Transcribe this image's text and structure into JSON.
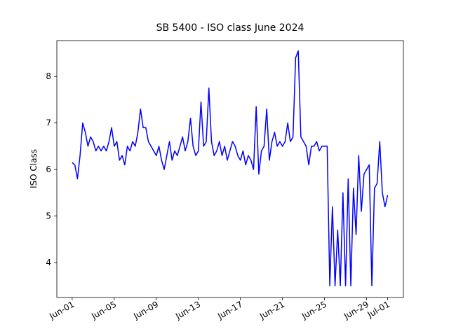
{
  "chart_data": {
    "type": "line",
    "title": "SB 5400 - ISO class June 2024",
    "y_label": "ISO Class",
    "x": [
      0,
      0.25,
      0.5,
      0.75,
      1,
      1.25,
      1.5,
      1.75,
      2,
      2.25,
      2.5,
      2.75,
      3,
      3.25,
      3.5,
      3.75,
      4,
      4.25,
      4.5,
      4.75,
      5,
      5.25,
      5.5,
      5.75,
      6,
      6.25,
      6.5,
      6.75,
      7,
      7.25,
      7.5,
      7.75,
      8,
      8.25,
      8.5,
      8.75,
      9,
      9.25,
      9.5,
      9.75,
      10,
      10.25,
      10.5,
      10.75,
      11,
      11.25,
      11.5,
      11.75,
      12,
      12.25,
      12.5,
      12.75,
      13,
      13.25,
      13.5,
      13.75,
      14,
      14.25,
      14.5,
      14.75,
      15,
      15.25,
      15.5,
      15.75,
      16,
      16.25,
      16.5,
      16.75,
      17,
      17.25,
      17.5,
      17.75,
      18,
      18.25,
      18.5,
      18.75,
      19,
      19.25,
      19.5,
      19.75,
      20,
      20.25,
      20.5,
      20.75,
      21,
      21.25,
      21.5,
      21.75,
      22,
      22.25,
      22.5,
      22.75,
      23,
      23.25,
      23.5,
      23.75,
      24,
      24.25,
      24.5,
      24.75,
      25,
      25.25,
      25.5,
      25.75,
      26,
      26.25,
      26.5,
      26.75,
      27,
      27.25,
      27.5,
      27.75,
      28,
      28.25,
      28.5,
      28.75,
      29,
      29.25,
      29.5,
      29.75,
      30
    ],
    "series": [
      {
        "color": "#0000ff",
        "values": [
          6.15,
          6.1,
          5.8,
          6.3,
          7.0,
          6.8,
          6.5,
          6.7,
          6.6,
          6.4,
          6.5,
          6.4,
          6.5,
          6.4,
          6.6,
          6.9,
          6.5,
          6.6,
          6.2,
          6.3,
          6.1,
          6.5,
          6.4,
          6.6,
          6.5,
          6.8,
          7.3,
          6.9,
          6.9,
          6.6,
          6.5,
          6.4,
          6.3,
          6.5,
          6.2,
          6.0,
          6.3,
          6.6,
          6.2,
          6.4,
          6.3,
          6.5,
          6.7,
          6.4,
          6.6,
          7.1,
          6.5,
          6.3,
          6.4,
          7.45,
          6.5,
          6.6,
          7.75,
          6.6,
          6.3,
          6.4,
          6.6,
          6.3,
          6.5,
          6.2,
          6.4,
          6.6,
          6.5,
          6.3,
          6.2,
          6.4,
          6.1,
          6.3,
          6.2,
          6.0,
          7.35,
          5.9,
          6.4,
          6.5,
          7.3,
          6.2,
          6.6,
          6.8,
          6.5,
          6.6,
          6.5,
          6.6,
          7.0,
          6.6,
          6.7,
          8.4,
          8.55,
          6.7,
          6.6,
          6.5,
          6.1,
          6.5,
          6.5,
          6.6,
          6.4,
          6.5,
          6.5,
          6.5,
          3.5,
          5.2,
          3.5,
          4.7,
          3.5,
          5.5,
          3.5,
          5.8,
          3.5,
          5.6,
          4.6,
          6.3,
          5.1,
          5.9,
          6.0,
          6.1,
          3.5,
          5.6,
          5.7,
          6.6,
          5.5,
          5.2,
          5.45
        ]
      }
    ],
    "xlim": [
      -1.46,
      31.5
    ],
    "ylim": [
      3.25,
      8.77
    ],
    "xticks": [
      {
        "value": 0,
        "label": "Jun-01"
      },
      {
        "value": 4,
        "label": "Jun-05"
      },
      {
        "value": 8,
        "label": "Jun-09"
      },
      {
        "value": 12,
        "label": "Jun-13"
      },
      {
        "value": 16,
        "label": "Jun-17"
      },
      {
        "value": 20,
        "label": "Jun-21"
      },
      {
        "value": 24,
        "label": "Jun-25"
      },
      {
        "value": 28,
        "label": "Jun-29"
      },
      {
        "value": 30,
        "label": "Jul-01"
      }
    ],
    "yticks": [
      4,
      5,
      6,
      7,
      8
    ]
  }
}
